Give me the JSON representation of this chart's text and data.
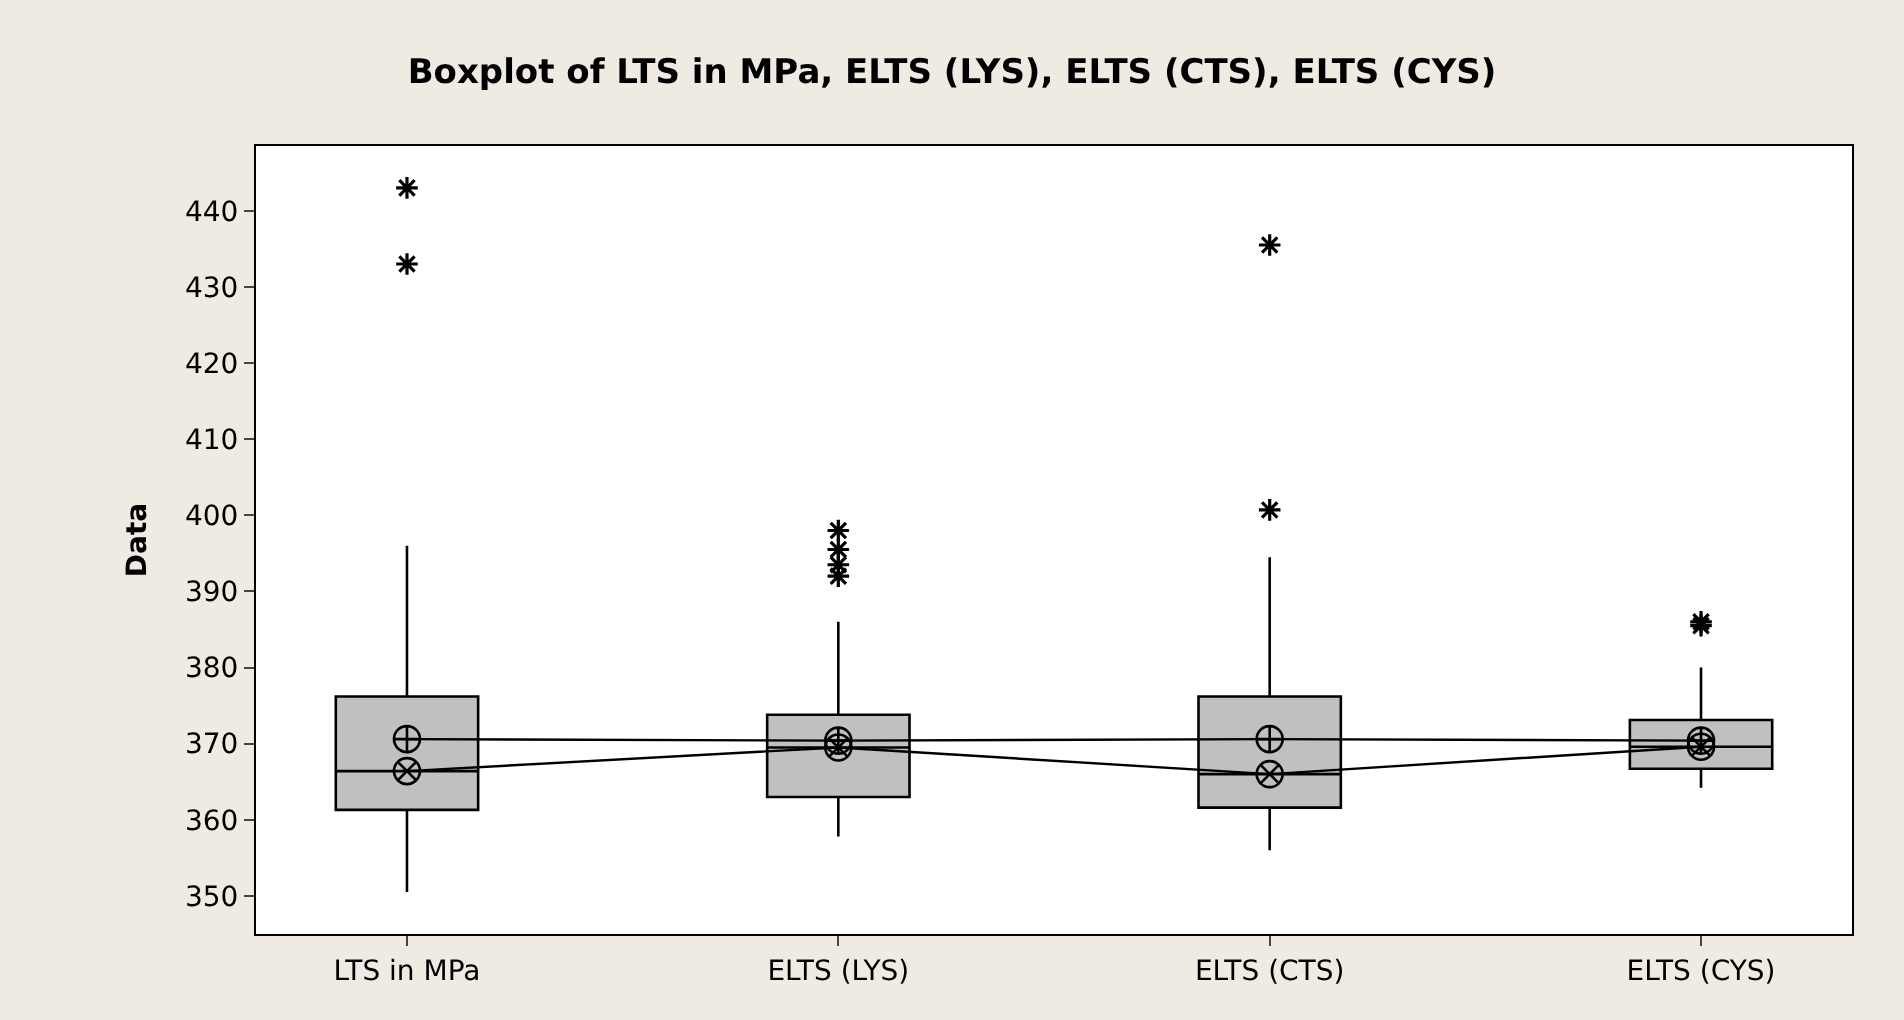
{
  "chart_data": {
    "type": "box",
    "title": "Boxplot of LTS in MPa, ELTS (LYS), ELTS (CTS), ELTS (CYS)",
    "ylabel": "Data",
    "categories": [
      "LTS in MPa",
      "ELTS (LYS)",
      "ELTS (CTS)",
      "ELTS (CYS)"
    ],
    "boxes": [
      {
        "low": 350.5,
        "q1": 361.3,
        "median": 366.4,
        "q3": 376.2,
        "high": 396,
        "outliers": [
          433,
          443
        ]
      },
      {
        "low": 357.8,
        "q1": 363,
        "median": 369.5,
        "q3": 373.8,
        "high": 386,
        "outliers": [
          392,
          393.5,
          395.5,
          398
        ]
      },
      {
        "low": 356,
        "q1": 361.6,
        "median": 366,
        "q3": 376.2,
        "high": 394.5,
        "outliers": [
          400.7,
          435.5
        ]
      },
      {
        "low": 364.2,
        "q1": 366.7,
        "median": 369.6,
        "q3": 373.1,
        "high": 380,
        "outliers": [
          385.5,
          386
        ]
      }
    ],
    "color": "#c0c0c0",
    "series": [
      {
        "type": "line",
        "marker": "cross",
        "color": "#000000",
        "x": [
          "LTS in MPa",
          "ELTS (LYS)",
          "ELTS (CTS)",
          "ELTS (CYS)"
        ],
        "values": [
          370.6,
          370.4,
          370.6,
          370.4
        ]
      },
      {
        "type": "line",
        "marker": "cross",
        "color": "#000000",
        "x": [
          "LTS in MPa",
          "ELTS (LYS)",
          "ELTS (CTS)",
          "ELTS (CYS)"
        ],
        "values": [
          366.4,
          369.5,
          366,
          369.6
        ]
      }
    ],
    "ylim": [
      345,
      448.5
    ],
    "yticks": [
      350,
      360,
      370,
      380,
      390,
      400,
      410,
      420,
      430,
      440
    ]
  }
}
